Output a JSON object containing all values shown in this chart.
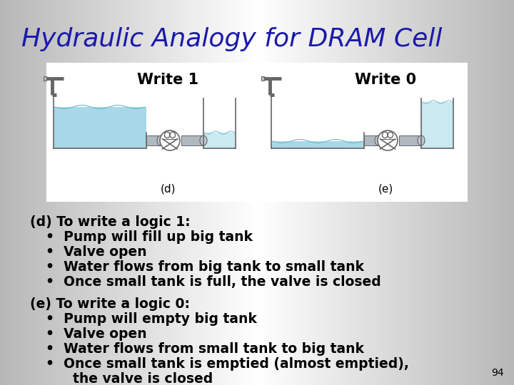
{
  "title": "Hydraulic Analogy for DRAM Cell",
  "title_color": "#1a1aaa",
  "title_fontsize": 26,
  "slide_bg_left": "#aaaaaa",
  "slide_bg_center": "#f0f0f0",
  "slide_bg_right": "#aaaaaa",
  "text_color": "#000000",
  "body_fontsize": 13.5,
  "page_number": "94",
  "section_d_header": "(d) To write a logic 1:",
  "section_d_bullets": [
    "Pump will fill up big tank",
    "Valve open",
    "Water flows from big tank to small tank",
    "Once small tank is full, the valve is closed"
  ],
  "section_e_header": "(e) To write a logic 0:",
  "section_e_bullets": [
    "Pump will empty big tank",
    "Valve open",
    "Water flows from small tank to big tank",
    "Once small tank is emptied (almost emptied),",
    "    the valve is closed"
  ],
  "diagram_bg": "#FFFFFF",
  "water_color_light": "#c8eaf0",
  "water_color": "#a8d8e8",
  "tank_edge_color": "#666666",
  "write1_label": "Write 1",
  "write0_label": "Write 0",
  "label_d": "(d)",
  "label_e": "(e)"
}
